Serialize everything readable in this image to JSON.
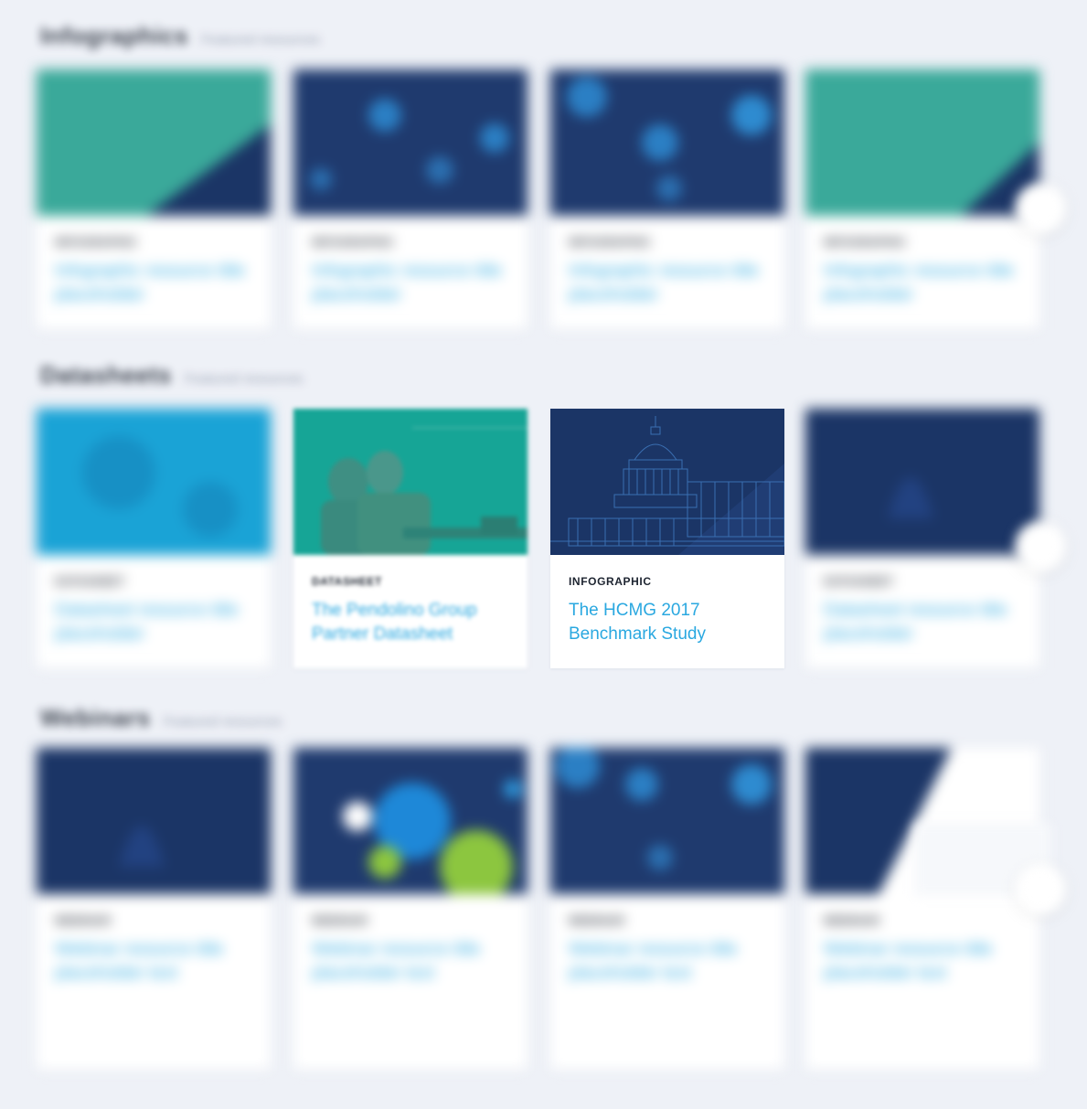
{
  "sections": [
    {
      "title": "Infographics",
      "subtitle": "Featured resources",
      "cards": [
        {
          "type": "Infographic",
          "title": "Infographic resource title placeholder",
          "theme": "teal"
        },
        {
          "type": "Infographic",
          "title": "Infographic resource title placeholder",
          "theme": "navy-nodes"
        },
        {
          "type": "Infographic",
          "title": "Infographic resource title placeholder",
          "theme": "navy-map"
        },
        {
          "type": "Infographic",
          "title": "Infographic resource title placeholder",
          "theme": "teal"
        }
      ]
    },
    {
      "title": "Datasheets",
      "subtitle": "Featured resources",
      "cards": [
        {
          "type": "Datasheet",
          "title": "Datasheet resource title placeholder",
          "theme": "cyan"
        },
        {
          "type": "Datasheet",
          "title": "The Pendolino Group Partner Datasheet",
          "theme": "teal-people"
        },
        {
          "type": "Infographic",
          "title": "The HCMG 2017 Benchmark Study",
          "theme": "navy-capitol"
        },
        {
          "type": "Datasheet",
          "title": "Datasheet resource title placeholder",
          "theme": "navy-capitol-dim"
        }
      ]
    },
    {
      "title": "Webinars",
      "subtitle": "Featured resources",
      "cards": [
        {
          "type": "Webinar",
          "title": "Webinar resource title placeholder text",
          "theme": "navy-capitol-dim"
        },
        {
          "type": "Webinar",
          "title": "Webinar resource title placeholder text",
          "theme": "navy-circles"
        },
        {
          "type": "Webinar",
          "title": "Webinar resource title placeholder text",
          "theme": "navy-map"
        },
        {
          "type": "Webinar",
          "title": "Webinar resource title placeholder text",
          "theme": "navy-split"
        }
      ]
    }
  ],
  "colors": {
    "page_bg": "#eef1f7",
    "card_bg": "#ffffff",
    "title_link": "#2aa8e0",
    "teal": "#2bab9e",
    "navy": "#1b3566",
    "cyan": "#1aa3d6",
    "green": "#8cc63f"
  },
  "icons": [
    "share-icon"
  ]
}
